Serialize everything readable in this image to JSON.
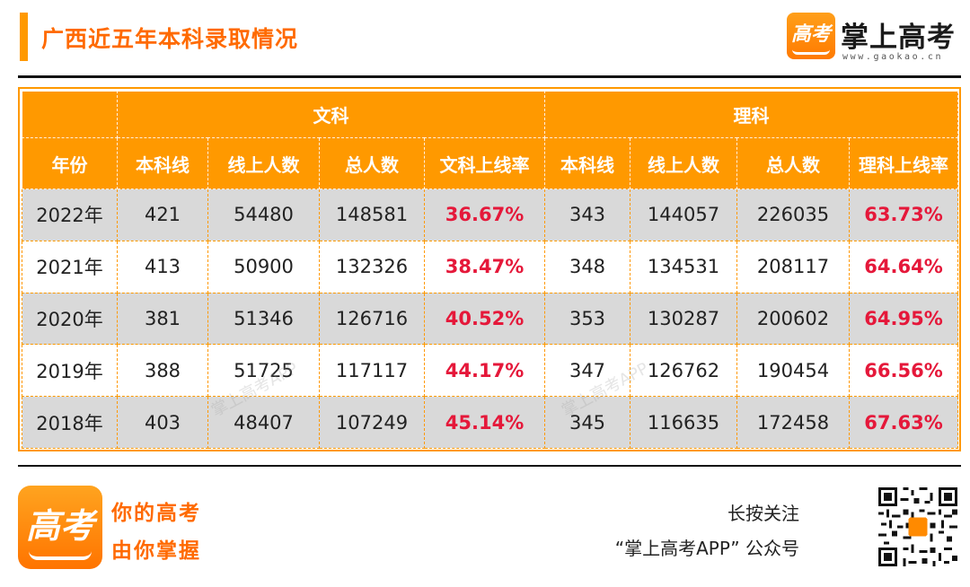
{
  "header": {
    "title": "广西近五年本科录取情况",
    "brand_name": "掌上高考",
    "brand_url": "www.gaokao.cn",
    "logo_glyph": "高考"
  },
  "table": {
    "group_headers": [
      "文科",
      "理科"
    ],
    "columns": [
      "年份",
      "本科线",
      "线上人数",
      "总人数",
      "文科上线率",
      "本科线",
      "线上人数",
      "总人数",
      "理科上线率"
    ],
    "rows": [
      [
        "2022年",
        "421",
        "54480",
        "148581",
        "36.67%",
        "343",
        "144057",
        "226035",
        "63.73%"
      ],
      [
        "2021年",
        "413",
        "50900",
        "132326",
        "38.47%",
        "348",
        "134531",
        "208117",
        "64.64%"
      ],
      [
        "2020年",
        "381",
        "51346",
        "126716",
        "40.52%",
        "353",
        "130287",
        "200602",
        "64.95%"
      ],
      [
        "2019年",
        "388",
        "51725",
        "117117",
        "44.17%",
        "347",
        "126762",
        "190454",
        "66.56%"
      ],
      [
        "2018年",
        "403",
        "48407",
        "107249",
        "45.14%",
        "345",
        "116635",
        "172458",
        "67.63%"
      ]
    ]
  },
  "watermark": "掌上高考APP",
  "footer": {
    "slogan_line1": "你的高考",
    "slogan_line2": "由你掌握",
    "follow_line1": "长按关注",
    "follow_line2": "“掌上高考APP” 公众号"
  },
  "colors": {
    "accent": "#ff9900",
    "title": "#ff6a00",
    "rate": "#e5183a",
    "row_alt": "#d9d9d9"
  },
  "icons": [
    "gaokao-logo-icon",
    "qr-code-icon"
  ]
}
